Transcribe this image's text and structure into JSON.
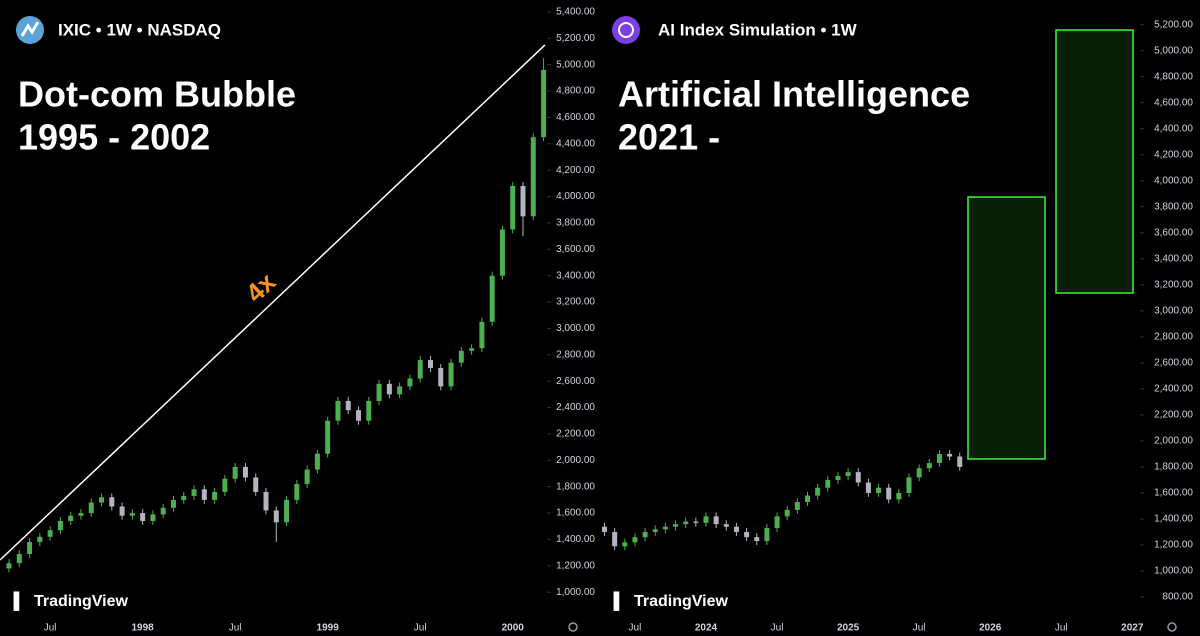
{
  "chart_data": [
    {
      "type": "candlestick",
      "title": "IXIC • 1W • NASDAQ",
      "heading": "Dot-com Bubble",
      "subheading": "1995 - 2002",
      "watermark": "TradingView",
      "up_color": "#4caf50",
      "down_color": "#b2b5be",
      "categories": [
        null,
        null,
        null,
        null,
        "Jul",
        null,
        null,
        null,
        null,
        null,
        null,
        null,
        null,
        "1998",
        null,
        null,
        null,
        null,
        null,
        null,
        null,
        null,
        "Jul",
        null,
        null,
        null,
        null,
        null,
        null,
        null,
        null,
        "1999",
        null,
        null,
        null,
        null,
        null,
        null,
        null,
        null,
        "Jul",
        null,
        null,
        null,
        null,
        null,
        null,
        null,
        null,
        "2000",
        null,
        null,
        null
      ],
      "open": [
        1180,
        1220,
        1290,
        1380,
        1420,
        1470,
        1540,
        1580,
        1600,
        1680,
        1720,
        1650,
        1580,
        1600,
        1540,
        1590,
        1640,
        1700,
        1730,
        1780,
        1700,
        1760,
        1860,
        1950,
        1870,
        1760,
        1620,
        1530,
        1700,
        1820,
        1930,
        2050,
        2300,
        2450,
        2380,
        2300,
        2450,
        2580,
        2500,
        2560,
        2620,
        2760,
        2700,
        2560,
        2740,
        2830,
        2850,
        3050,
        3400,
        3750,
        4080,
        3850,
        4450
      ],
      "high": [
        1250,
        1320,
        1410,
        1450,
        1500,
        1570,
        1610,
        1630,
        1710,
        1750,
        1750,
        1680,
        1630,
        1630,
        1620,
        1670,
        1730,
        1760,
        1810,
        1810,
        1790,
        1890,
        1980,
        1980,
        1900,
        1790,
        1650,
        1730,
        1850,
        1960,
        2080,
        2330,
        2480,
        2480,
        2410,
        2480,
        2610,
        2610,
        2590,
        2650,
        2790,
        2790,
        2730,
        2770,
        2860,
        2880,
        3080,
        3430,
        3780,
        4110,
        4110,
        4480,
        5050
      ],
      "low": [
        1150,
        1190,
        1260,
        1350,
        1390,
        1440,
        1510,
        1550,
        1570,
        1650,
        1620,
        1550,
        1550,
        1510,
        1510,
        1560,
        1610,
        1670,
        1700,
        1670,
        1670,
        1730,
        1830,
        1840,
        1730,
        1590,
        1380,
        1500,
        1670,
        1790,
        1900,
        2020,
        2270,
        2350,
        2270,
        2270,
        2420,
        2470,
        2470,
        2530,
        2590,
        2670,
        2530,
        2530,
        2710,
        2800,
        2820,
        3020,
        3370,
        3720,
        3700,
        3820,
        4420
      ],
      "close": [
        1220,
        1290,
        1380,
        1420,
        1470,
        1540,
        1580,
        1600,
        1680,
        1720,
        1650,
        1580,
        1600,
        1540,
        1590,
        1640,
        1700,
        1730,
        1780,
        1700,
        1760,
        1860,
        1950,
        1870,
        1760,
        1620,
        1530,
        1700,
        1820,
        1930,
        2050,
        2300,
        2450,
        2380,
        2300,
        2450,
        2580,
        2500,
        2560,
        2620,
        2760,
        2700,
        2560,
        2740,
        2830,
        2850,
        3050,
        3400,
        3750,
        4080,
        3850,
        4450,
        4960
      ],
      "ylim": [
        865,
        5490
      ],
      "yticks": [
        {
          "value": 1000,
          "label": "1,000.00"
        },
        {
          "value": 1200,
          "label": "1,200.00"
        },
        {
          "value": 1400,
          "label": "1,400.00"
        },
        {
          "value": 1600,
          "label": "1,600.00"
        },
        {
          "value": 1800,
          "label": "1,800.00"
        },
        {
          "value": 2000,
          "label": "2,000.00"
        },
        {
          "value": 2200,
          "label": "2,200.00"
        },
        {
          "value": 2400,
          "label": "2,400.00"
        },
        {
          "value": 2600,
          "label": "2,600.00"
        },
        {
          "value": 2800,
          "label": "2,800.00"
        },
        {
          "value": 3000,
          "label": "3,000.00"
        },
        {
          "value": 3200,
          "label": "3,200.00"
        },
        {
          "value": 3400,
          "label": "3,400.00"
        },
        {
          "value": 3600,
          "label": "3,600.00"
        },
        {
          "value": 3800,
          "label": "3,800.00"
        },
        {
          "value": 4000,
          "label": "4,000.00"
        },
        {
          "value": 4200,
          "label": "4,200.00"
        },
        {
          "value": 4400,
          "label": "4,400.00"
        },
        {
          "value": 4600,
          "label": "4,600.00"
        },
        {
          "value": 4800,
          "label": "4,800.00"
        },
        {
          "value": 5000,
          "label": "5,000.00"
        },
        {
          "value": 5200,
          "label": "5,200.00"
        },
        {
          "value": 5400,
          "label": "5,400.00"
        }
      ],
      "trendline": {
        "values": [
          1244,
          5149
        ],
        "color": "#ffffff",
        "label": "4x",
        "label_color": "#f7931a"
      }
    },
    {
      "type": "candlestick",
      "title": "AI Index Simulation • 1W",
      "heading": "Artificial Intelligence",
      "subheading": "2021 -",
      "watermark": "TradingView",
      "up_color": "#4caf50",
      "down_color": "#b2b5be",
      "categories": [
        null,
        null,
        null,
        "Jul",
        null,
        null,
        null,
        null,
        null,
        null,
        "2024",
        null,
        null,
        null,
        null,
        null,
        null,
        "Jul",
        null,
        null,
        null,
        null,
        null,
        null,
        "2025",
        null,
        null,
        null,
        null,
        null,
        null,
        "Jul",
        null,
        null,
        null,
        null,
        null,
        null,
        "2026",
        null,
        null,
        null,
        null,
        null,
        null,
        "Jul",
        null,
        null,
        null,
        null,
        null,
        null,
        "2027"
      ],
      "open": [
        1340,
        1300,
        1190,
        1220,
        1260,
        1300,
        1320,
        1340,
        1360,
        1380,
        1370,
        1420,
        1360,
        1340,
        1300,
        1260,
        1230,
        1330,
        1420,
        1470,
        1530,
        1580,
        1640,
        1700,
        1730,
        1760,
        1680,
        1600,
        1640,
        1550,
        1600,
        1720,
        1790,
        1830,
        1900,
        1880,
        null,
        null,
        null,
        null,
        null,
        null,
        null,
        null,
        null,
        null,
        null,
        null,
        null,
        null,
        null,
        null,
        null
      ],
      "high": [
        1370,
        1330,
        1250,
        1290,
        1330,
        1350,
        1370,
        1390,
        1410,
        1410,
        1450,
        1450,
        1390,
        1370,
        1330,
        1290,
        1360,
        1450,
        1500,
        1560,
        1610,
        1670,
        1730,
        1760,
        1790,
        1790,
        1710,
        1670,
        1670,
        1630,
        1750,
        1820,
        1860,
        1930,
        1930,
        1910,
        null,
        null,
        null,
        null,
        null,
        null,
        null,
        null,
        null,
        null,
        null,
        null,
        null,
        null,
        null,
        null,
        null
      ],
      "low": [
        1270,
        1160,
        1160,
        1190,
        1230,
        1270,
        1290,
        1310,
        1330,
        1340,
        1340,
        1330,
        1310,
        1270,
        1230,
        1200,
        1200,
        1300,
        1390,
        1440,
        1500,
        1550,
        1610,
        1670,
        1700,
        1650,
        1570,
        1570,
        1520,
        1520,
        1570,
        1690,
        1760,
        1800,
        1850,
        1770,
        null,
        null,
        null,
        null,
        null,
        null,
        null,
        null,
        null,
        null,
        null,
        null,
        null,
        null,
        null,
        null,
        null
      ],
      "close": [
        1300,
        1190,
        1220,
        1260,
        1300,
        1320,
        1340,
        1360,
        1380,
        1370,
        1420,
        1360,
        1340,
        1300,
        1260,
        1230,
        1330,
        1420,
        1470,
        1530,
        1580,
        1640,
        1700,
        1730,
        1760,
        1680,
        1600,
        1640,
        1550,
        1600,
        1720,
        1790,
        1830,
        1900,
        1880,
        1800,
        null,
        null,
        null,
        null,
        null,
        null,
        null,
        null,
        null,
        null,
        null,
        null,
        null,
        null,
        null,
        null,
        null
      ],
      "ylim": [
        700,
        5390
      ],
      "yticks": [
        {
          "value": 800,
          "label": "800.00"
        },
        {
          "value": 1000,
          "label": "1,000.00"
        },
        {
          "value": 1200,
          "label": "1,200.00"
        },
        {
          "value": 1400,
          "label": "1,400.00"
        },
        {
          "value": 1600,
          "label": "1,600.00"
        },
        {
          "value": 1800,
          "label": "1,800.00"
        },
        {
          "value": 2000,
          "label": "2,000.00"
        },
        {
          "value": 2200,
          "label": "2,200.00"
        },
        {
          "value": 2400,
          "label": "2,400.00"
        },
        {
          "value": 2600,
          "label": "2,600.00"
        },
        {
          "value": 2800,
          "label": "2,800.00"
        },
        {
          "value": 3000,
          "label": "3,000.00"
        },
        {
          "value": 3200,
          "label": "3,200.00"
        },
        {
          "value": 3400,
          "label": "3,400.00"
        },
        {
          "value": 3600,
          "label": "3,600.00"
        },
        {
          "value": 3800,
          "label": "3,800.00"
        },
        {
          "value": 4000,
          "label": "4,000.00"
        },
        {
          "value": 4200,
          "label": "4,200.00"
        },
        {
          "value": 4400,
          "label": "4,400.00"
        },
        {
          "value": 4600,
          "label": "4,600.00"
        },
        {
          "value": 4800,
          "label": "4,800.00"
        },
        {
          "value": 5000,
          "label": "5,000.00"
        },
        {
          "value": 5200,
          "label": "5,200.00"
        }
      ],
      "zones": {
        "color": "#3cf23c",
        "values": [
          {
            "low": 1861,
            "high": 3875
          },
          {
            "low": 3137,
            "high": 5159
          }
        ]
      }
    }
  ]
}
